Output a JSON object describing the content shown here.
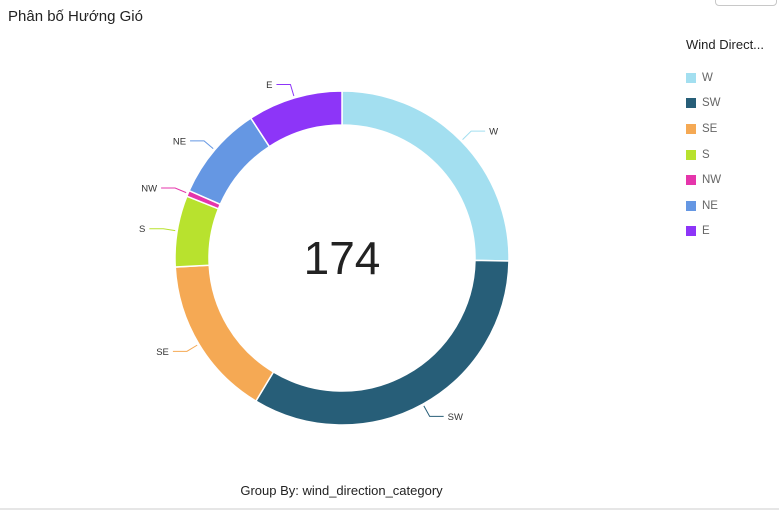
{
  "title": "Phân bố Hướng Gió",
  "legend_title": "Wind Direct...",
  "group_by": "Group By: wind_direction_category",
  "chart_data": {
    "type": "pie",
    "donut": true,
    "center_value": "174",
    "categories": [
      "W",
      "SW",
      "SE",
      "S",
      "NW",
      "NE",
      "E"
    ],
    "values": [
      44,
      58,
      27,
      12,
      1,
      16,
      16
    ],
    "colors": [
      "#a3dff0",
      "#275e78",
      "#f5a954",
      "#b8e22e",
      "#e535ab",
      "#6597e3",
      "#8d35f8"
    ],
    "legend_placement": "right"
  }
}
